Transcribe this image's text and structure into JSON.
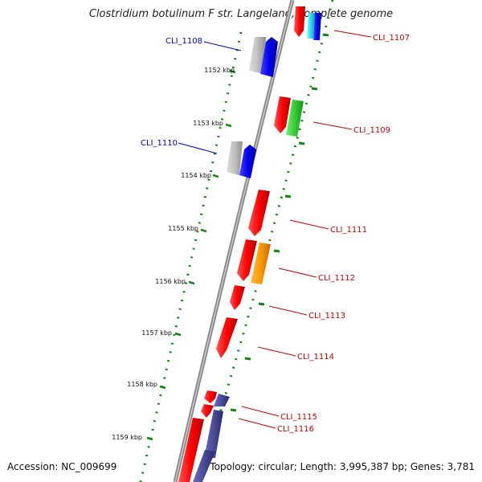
{
  "title": "Clostridium botulinum F str. Langeland, complete genome",
  "footer": {
    "accession": "Accession: NC_009699",
    "summary": "Topology: circular; Length: 3,995,387 bp; Genes: 3,781"
  },
  "colors": {
    "plus_label": "#0000cc",
    "minus_label": "#cc0000",
    "tick": "#118811",
    "backbone": "#888888"
  },
  "scale_ticks": [
    {
      "kbp": 1152,
      "label": "1152 kbp"
    },
    {
      "kbp": 1153,
      "label": "1153 kbp"
    },
    {
      "kbp": 1154,
      "label": "1154 kbp"
    },
    {
      "kbp": 1155,
      "label": "1155 kbp"
    },
    {
      "kbp": 1156,
      "label": "1156 kbp"
    },
    {
      "kbp": 1157,
      "label": "1157 kbp"
    },
    {
      "kbp": 1158,
      "label": "1158 kbp"
    },
    {
      "kbp": 1159,
      "label": "1159 kbp"
    }
  ],
  "gene_labels": [
    {
      "name": "CLI_1107",
      "side": "right"
    },
    {
      "name": "CLI_1108",
      "side": "left"
    },
    {
      "name": "CLI_1109",
      "side": "right"
    },
    {
      "name": "CLI_1110",
      "side": "left"
    },
    {
      "name": "CLI_1111",
      "side": "right"
    },
    {
      "name": "CLI_1112",
      "side": "right"
    },
    {
      "name": "CLI_1113",
      "side": "right"
    },
    {
      "name": "CLI_1114",
      "side": "right"
    },
    {
      "name": "CLI_1115",
      "side": "right"
    },
    {
      "name": "CLI_1116",
      "side": "right"
    }
  ]
}
